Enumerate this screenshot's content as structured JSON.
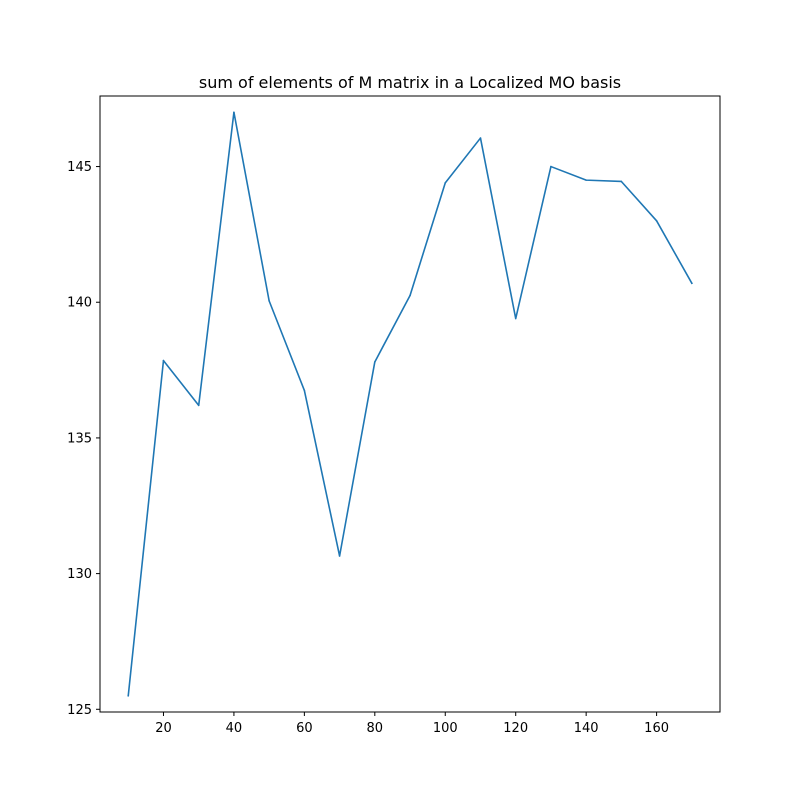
{
  "chart_data": {
    "type": "line",
    "title": "sum of elements of M matrix in a Localized MO basis",
    "xlabel": "",
    "ylabel": "",
    "x": [
      10,
      20,
      30,
      40,
      50,
      60,
      70,
      80,
      90,
      100,
      110,
      120,
      130,
      140,
      150,
      160,
      170
    ],
    "series": [
      {
        "values": [
          125.5,
          137.85,
          136.2,
          147.0,
          140.05,
          136.75,
          130.65,
          137.8,
          140.25,
          144.4,
          146.05,
          139.4,
          145.0,
          144.5,
          144.45,
          143.0,
          140.7
        ]
      }
    ],
    "xlim": [
      1.98,
      178.0
    ],
    "ylim": [
      124.9,
      147.6
    ],
    "xticks": [
      20,
      40,
      60,
      80,
      100,
      120,
      140,
      160
    ],
    "yticks": [
      125,
      130,
      135,
      140,
      145
    ],
    "line_color": "#1f77b4",
    "grid": false,
    "legend": "none"
  }
}
